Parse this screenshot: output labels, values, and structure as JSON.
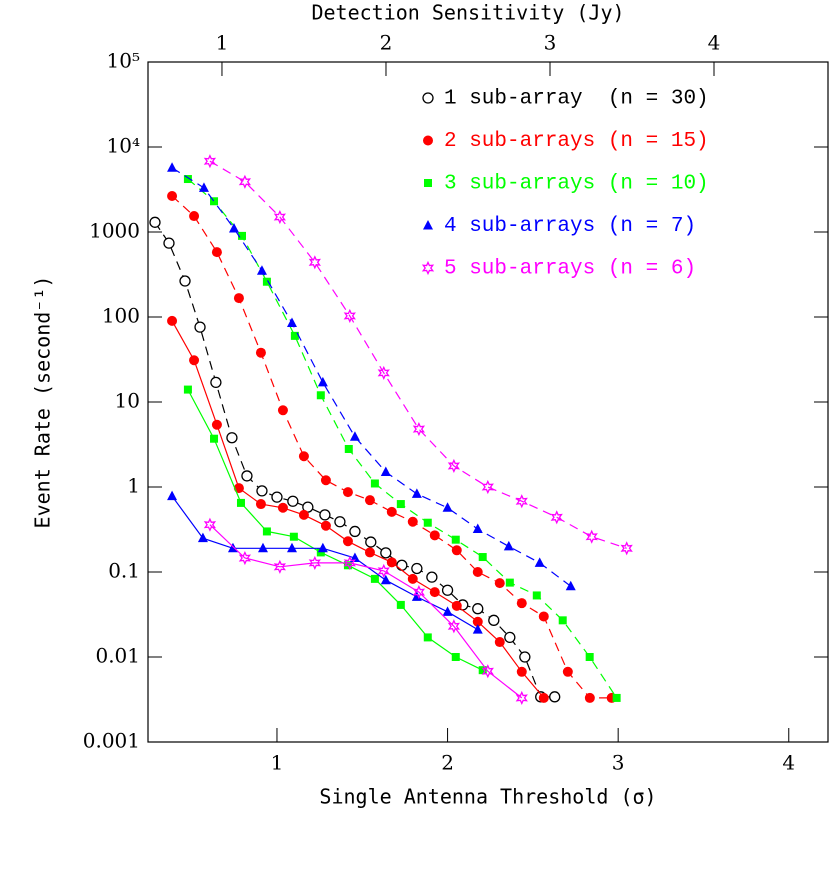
{
  "chart_data": {
    "type": "line",
    "xlabel": "Single Antenna Threshold (σ)",
    "ylabel": "Event Rate (second⁻¹)",
    "x2label": "Detection Sensitivity (Jy)",
    "xlim": [
      0.244,
      4.23
    ],
    "xticks": [
      1,
      2,
      3,
      4
    ],
    "x2lim": [
      0.549,
      4.695
    ],
    "x2ticks": [
      1,
      2,
      3,
      4
    ],
    "ylim": [
      0.001,
      100000
    ],
    "ylog": true,
    "yticks": [
      {
        "value": 100000,
        "label": "10⁵"
      },
      {
        "value": 10000,
        "label": "10⁴"
      },
      1000,
      100,
      10,
      1,
      0.1,
      0.01,
      0.001
    ],
    "legend": "upper right",
    "series": [
      {
        "name": "1 sub-array  (n = 30)",
        "color": "#000000",
        "marker": "open-circle",
        "x": [
          0.285,
          0.367,
          0.461,
          0.549,
          0.642,
          0.736,
          0.824,
          0.912,
          1.0,
          1.093,
          1.181,
          1.281,
          1.369,
          1.457,
          1.55,
          1.638,
          1.732,
          1.82,
          1.908,
          2.0,
          2.089,
          2.177,
          2.271,
          2.365,
          2.453,
          2.546,
          2.628
        ],
        "values": [
          1300,
          740,
          265,
          76,
          17,
          3.8,
          1.35,
          0.9,
          0.76,
          0.68,
          0.58,
          0.47,
          0.39,
          0.3,
          0.225,
          0.168,
          0.12,
          0.11,
          0.087,
          0.061,
          0.041,
          0.037,
          0.027,
          0.017,
          0.01,
          0.0034,
          0.0034
        ]
      },
      {
        "name": "2 sub-arrays (n = 15)",
        "color": "#ff0000",
        "marker": "circle",
        "x": [
          0.385,
          0.514,
          0.648,
          0.777,
          0.906,
          1.035,
          1.158,
          1.287,
          1.416,
          1.545,
          1.673,
          1.796,
          1.925,
          2.054,
          2.177,
          2.306,
          2.435,
          2.564,
          2.705,
          2.834,
          2.962
        ],
        "values": [
          2650,
          1540,
          580,
          167,
          38,
          8,
          2.3,
          1.2,
          0.87,
          0.7,
          0.51,
          0.39,
          0.27,
          0.18,
          0.1,
          0.074,
          0.043,
          0.03,
          0.0067,
          0.0033,
          0.0033
        ],
        "lower_x": [
          0.385,
          0.514,
          0.648,
          0.777,
          0.906,
          1.035,
          1.158,
          1.287,
          1.416,
          1.545,
          1.673,
          1.796,
          1.925,
          2.054,
          2.177,
          2.306,
          2.435,
          2.564
        ],
        "lower_values": [
          90,
          31,
          5.4,
          0.97,
          0.63,
          0.57,
          0.47,
          0.35,
          0.23,
          0.17,
          0.13,
          0.083,
          0.058,
          0.04,
          0.026,
          0.015,
          0.0067,
          0.0033
        ]
      },
      {
        "name": "3 sub-arrays (n = 10)",
        "color": "#00ff00",
        "marker": "square",
        "x": [
          0.478,
          0.631,
          0.795,
          0.941,
          1.105,
          1.257,
          1.421,
          1.574,
          1.726,
          1.884,
          2.048,
          2.206,
          2.365,
          2.523,
          2.675,
          2.833,
          2.991
        ],
        "values": [
          4200,
          2300,
          900,
          260,
          60,
          12,
          2.8,
          1.1,
          0.63,
          0.38,
          0.24,
          0.15,
          0.075,
          0.053,
          0.027,
          0.01,
          0.0033
        ],
        "lower_x": [
          0.478,
          0.631,
          0.789,
          0.941,
          1.099,
          1.257,
          1.416,
          1.574,
          1.726,
          1.884,
          2.048,
          2.206
        ],
        "lower_values": [
          14,
          3.7,
          0.65,
          0.3,
          0.26,
          0.17,
          0.12,
          0.083,
          0.041,
          0.017,
          0.01,
          0.007
        ]
      },
      {
        "name": "4 sub-arrays (n = 7)",
        "color": "#0000ff",
        "marker": "triangle",
        "x": [
          0.385,
          0.572,
          0.748,
          0.912,
          1.088,
          1.269,
          1.457,
          1.638,
          1.82,
          2.0,
          2.177,
          2.359,
          2.54,
          2.722
        ],
        "values": [
          5700,
          3300,
          1100,
          350,
          85,
          17,
          3.9,
          1.5,
          0.83,
          0.57,
          0.32,
          0.2,
          0.128,
          0.068
        ],
        "lower_x": [
          0.385,
          0.566,
          0.742,
          0.918,
          1.088,
          1.269,
          1.457,
          1.638,
          1.82,
          2.0,
          2.177
        ],
        "lower_values": [
          0.78,
          0.25,
          0.19,
          0.19,
          0.19,
          0.19,
          0.146,
          0.08,
          0.051,
          0.034,
          0.021
        ]
      },
      {
        "name": "5 sub-arrays (n = 6)",
        "color": "#ff00ff",
        "marker": "star",
        "x": [
          0.607,
          0.812,
          1.017,
          1.222,
          1.427,
          1.626,
          1.832,
          2.037,
          2.236,
          2.435,
          2.64,
          2.845,
          3.05
        ],
        "values": [
          6800,
          3900,
          1500,
          440,
          103,
          22,
          4.8,
          1.77,
          1.0,
          0.68,
          0.44,
          0.26,
          0.19
        ],
        "lower_x": [
          0.607,
          0.812,
          1.017,
          1.222,
          1.427,
          1.626,
          1.832,
          2.037,
          2.236,
          2.435
        ],
        "lower_values": [
          0.36,
          0.146,
          0.115,
          0.128,
          0.128,
          0.103,
          0.058,
          0.023,
          0.0068,
          0.0033
        ]
      }
    ]
  }
}
